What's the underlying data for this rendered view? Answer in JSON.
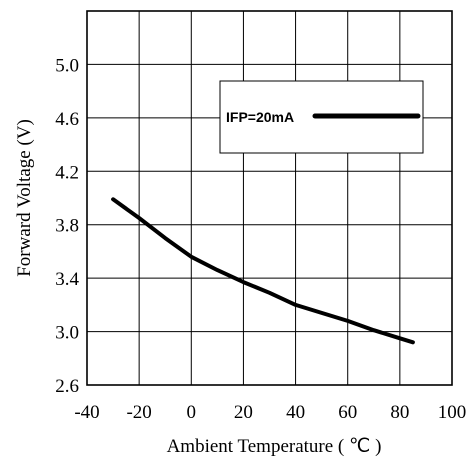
{
  "chart_data": {
    "type": "line",
    "xlabel": "Ambient Temperature ( ℃ )",
    "ylabel": "Forward Voltage (V)",
    "xlim": [
      -40,
      100
    ],
    "ylim": [
      2.6,
      5.4
    ],
    "x_ticks": [
      "-40",
      "-20",
      "0",
      "20",
      "40",
      "60",
      "80",
      "100"
    ],
    "y_ticks": [
      "2.6",
      "3.0",
      "3.4",
      "3.8",
      "4.2",
      "4.6",
      "5.0"
    ],
    "x_tick_values": [
      -40,
      -20,
      0,
      20,
      40,
      60,
      80,
      100
    ],
    "y_tick_values": [
      2.6,
      3.0,
      3.4,
      3.8,
      4.2,
      4.6,
      5.0
    ],
    "x_grid_values": [
      -40,
      -20,
      0,
      20,
      40,
      60,
      80,
      100
    ],
    "y_grid_values": [
      2.6,
      3.0,
      3.4,
      3.8,
      4.2,
      4.6,
      5.0,
      5.4
    ],
    "grid": true,
    "legend_position": "top-right",
    "series": [
      {
        "name": "IFP=20mA",
        "color": "#000000",
        "x": [
          -30,
          -20,
          -10,
          0,
          10,
          20,
          30,
          40,
          50,
          60,
          70,
          80,
          85
        ],
        "y": [
          3.99,
          3.85,
          3.7,
          3.56,
          3.46,
          3.37,
          3.29,
          3.2,
          3.14,
          3.08,
          3.01,
          2.95,
          2.92
        ]
      }
    ]
  }
}
